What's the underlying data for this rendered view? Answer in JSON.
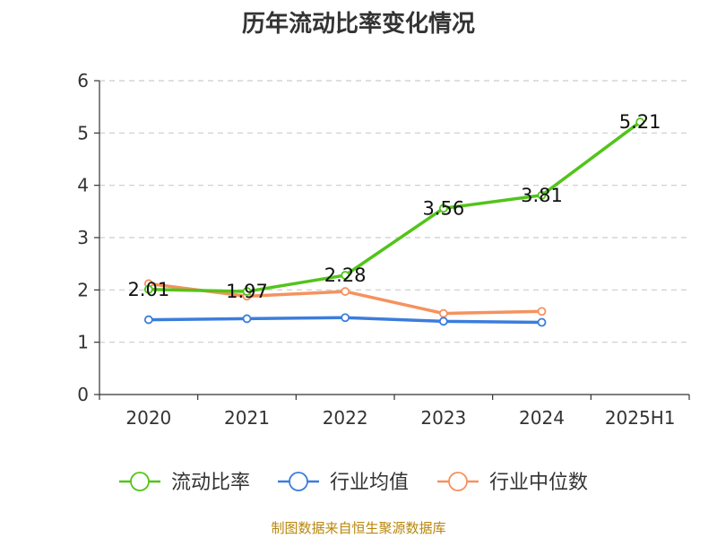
{
  "chart_data": {
    "type": "line",
    "title": "历年流动比率变化情况",
    "categories": [
      "2020",
      "2021",
      "2022",
      "2023",
      "2024",
      "2025H1"
    ],
    "ylim": [
      0,
      6
    ],
    "yticks": [
      0,
      1,
      2,
      3,
      4,
      5,
      6
    ],
    "grid": true,
    "legend_position": "bottom",
    "series": [
      {
        "name": "流动比率",
        "color": "#52c41a",
        "values": [
          2.01,
          1.97,
          2.28,
          3.56,
          3.81,
          5.21
        ],
        "labels": [
          "2.01",
          "1.97",
          "2.28",
          "3.56",
          "3.81",
          "5.21"
        ]
      },
      {
        "name": "行业均值",
        "color": "#3b7ddd",
        "values": [
          1.43,
          1.45,
          1.47,
          1.4,
          1.38,
          null
        ]
      },
      {
        "name": "行业中位数",
        "color": "#f5925e",
        "values": [
          2.12,
          1.88,
          1.97,
          1.55,
          1.59,
          null
        ]
      }
    ]
  },
  "footer": {
    "source": "制图数据来自恒生聚源数据库"
  }
}
